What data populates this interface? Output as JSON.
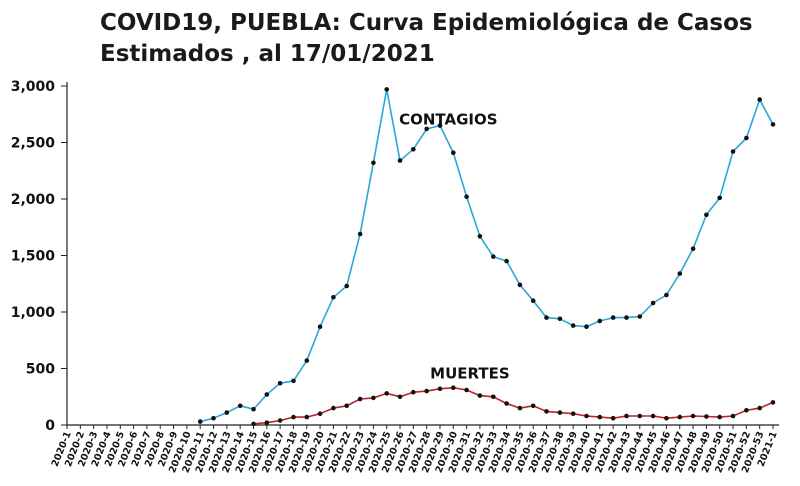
{
  "page": {
    "title_line1": "COVID19, PUEBLA: Curva Epidemiológica de Casos",
    "title_line2": "Estimados , al 17/01/2021"
  },
  "chart_data": {
    "type": "line",
    "title": "COVID19, PUEBLA: Curva Epidemiológica de Casos Estimados , al 17/01/2021",
    "xlabel": "",
    "ylabel": "",
    "ylim": [
      0,
      3000
    ],
    "yticks": [
      0,
      500,
      1000,
      1500,
      2000,
      2500,
      3000
    ],
    "ytick_labels": [
      "0",
      "500",
      "1,000",
      "1,500",
      "2,000",
      "2,500",
      "3,000"
    ],
    "grid": false,
    "categories": [
      "2020-1",
      "2020-2",
      "2020-3",
      "2020-4",
      "2020-5",
      "2020-6",
      "2020-7",
      "2020-8",
      "2020-9",
      "2020-10",
      "2020-11",
      "2020-12",
      "2020-13",
      "2020-14",
      "2020-15",
      "2020-16",
      "2020-17",
      "2020-18",
      "2020-19",
      "2020-20",
      "2020-21",
      "2020-22",
      "2020-23",
      "2020-24",
      "2020-25",
      "2020-26",
      "2020-27",
      "2020-28",
      "2020-29",
      "2020-30",
      "2020-31",
      "2020-32",
      "2020-33",
      "2020-34",
      "2020-35",
      "2020-36",
      "2020-37",
      "2020-38",
      "2020-39",
      "2020-40",
      "2020-41",
      "2020-42",
      "2020-43",
      "2020-44",
      "2020-45",
      "2020-46",
      "2020-47",
      "2020-48",
      "2020-49",
      "2020-50",
      "2020-51",
      "2020-52",
      "2020-53",
      "2021-1"
    ],
    "series": [
      {
        "name": "CONTAGIOS",
        "color": "#2aa7d8",
        "label_at": "2020-30",
        "values": [
          0,
          0,
          0,
          0,
          0,
          0,
          0,
          0,
          0,
          0,
          0,
          0,
          0,
          0,
          0,
          null,
          null,
          null,
          null,
          null,
          null,
          null,
          null,
          null,
          null,
          null,
          null,
          null,
          null,
          null,
          null,
          null,
          null,
          null,
          null,
          null,
          null,
          null,
          null,
          null,
          null,
          null,
          null,
          null,
          null,
          null,
          null,
          null,
          null,
          null,
          null,
          null,
          null,
          null
        ]
      },
      {
        "name": "MUERTES",
        "color": "#c0202a",
        "label_at": "2020-32",
        "values": [
          0,
          0,
          0,
          0,
          0,
          0,
          0,
          0,
          0,
          0,
          0,
          0,
          0,
          0,
          0,
          0,
          0,
          0,
          0,
          0,
          0,
          0,
          0,
          0,
          0,
          0,
          0,
          0,
          0,
          0,
          0,
          0,
          0,
          0,
          0,
          0,
          0,
          0,
          0,
          0,
          0,
          0,
          0,
          0,
          0,
          0,
          0,
          0,
          0,
          0,
          0,
          0,
          0,
          0
        ]
      }
    ]
  }
}
